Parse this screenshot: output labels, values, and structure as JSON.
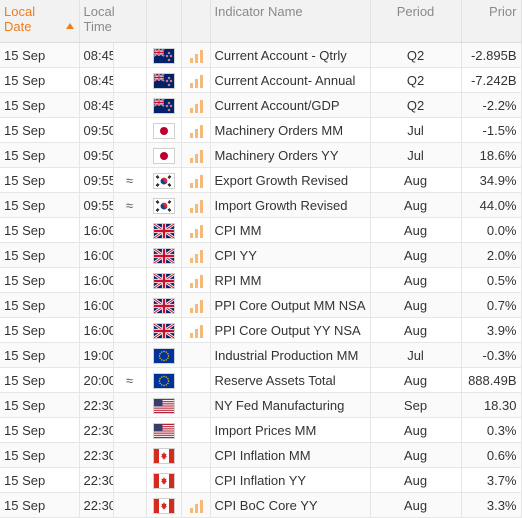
{
  "headers": {
    "local_date": "Local Date",
    "local_time": "Local Time",
    "indicator_name": "Indicator Name",
    "period": "Period",
    "prior": "Prior"
  },
  "rows": [
    {
      "date": "15 Sep",
      "time": "08:45",
      "approx": "",
      "country": "new-zealand",
      "flag_icon": "new-zealand-flag-icon",
      "importance": 3,
      "name": "Current Account - Qtrly",
      "period": "Q2",
      "prior": "-2.895B"
    },
    {
      "date": "15 Sep",
      "time": "08:45",
      "approx": "",
      "country": "new-zealand",
      "flag_icon": "new-zealand-flag-icon",
      "importance": 3,
      "name": "Current Account- Annual",
      "period": "Q2",
      "prior": "-7.242B"
    },
    {
      "date": "15 Sep",
      "time": "08:45",
      "approx": "",
      "country": "new-zealand",
      "flag_icon": "new-zealand-flag-icon",
      "importance": 3,
      "name": "Current Account/GDP",
      "period": "Q2",
      "prior": "-2.2%"
    },
    {
      "date": "15 Sep",
      "time": "09:50",
      "approx": "",
      "country": "japan",
      "flag_icon": "japan-flag-icon",
      "importance": 3,
      "name": "Machinery Orders MM",
      "period": "Jul",
      "prior": "-1.5%"
    },
    {
      "date": "15 Sep",
      "time": "09:50",
      "approx": "",
      "country": "japan",
      "flag_icon": "japan-flag-icon",
      "importance": 3,
      "name": "Machinery Orders YY",
      "period": "Jul",
      "prior": "18.6%"
    },
    {
      "date": "15 Sep",
      "time": "09:55",
      "approx": "≈",
      "country": "south-korea",
      "flag_icon": "south-korea-flag-icon",
      "importance": 3,
      "name": "Export Growth Revised",
      "period": "Aug",
      "prior": "34.9%"
    },
    {
      "date": "15 Sep",
      "time": "09:55",
      "approx": "≈",
      "country": "south-korea",
      "flag_icon": "south-korea-flag-icon",
      "importance": 3,
      "name": "Import Growth Revised",
      "period": "Aug",
      "prior": "44.0%"
    },
    {
      "date": "15 Sep",
      "time": "16:00",
      "approx": "",
      "country": "united-kingdom",
      "flag_icon": "uk-flag-icon",
      "importance": 3,
      "name": "CPI MM",
      "period": "Aug",
      "prior": "0.0%"
    },
    {
      "date": "15 Sep",
      "time": "16:00",
      "approx": "",
      "country": "united-kingdom",
      "flag_icon": "uk-flag-icon",
      "importance": 3,
      "name": "CPI YY",
      "period": "Aug",
      "prior": "2.0%"
    },
    {
      "date": "15 Sep",
      "time": "16:00",
      "approx": "",
      "country": "united-kingdom",
      "flag_icon": "uk-flag-icon",
      "importance": 3,
      "name": "RPI MM",
      "period": "Aug",
      "prior": "0.5%"
    },
    {
      "date": "15 Sep",
      "time": "16:00",
      "approx": "",
      "country": "united-kingdom",
      "flag_icon": "uk-flag-icon",
      "importance": 3,
      "name": "PPI Core Output MM NSA",
      "period": "Aug",
      "prior": "0.7%"
    },
    {
      "date": "15 Sep",
      "time": "16:00",
      "approx": "",
      "country": "united-kingdom",
      "flag_icon": "uk-flag-icon",
      "importance": 3,
      "name": "PPI Core Output YY NSA",
      "period": "Aug",
      "prior": "3.9%"
    },
    {
      "date": "15 Sep",
      "time": "19:00",
      "approx": "",
      "country": "euro-zone",
      "flag_icon": "eu-flag-icon",
      "importance": 0,
      "name": "Industrial Production MM",
      "period": "Jul",
      "prior": "-0.3%"
    },
    {
      "date": "15 Sep",
      "time": "20:00",
      "approx": "≈",
      "country": "euro-zone",
      "flag_icon": "eu-flag-icon",
      "importance": 0,
      "name": "Reserve Assets Total",
      "period": "Aug",
      "prior": "888.49B"
    },
    {
      "date": "15 Sep",
      "time": "22:30",
      "approx": "",
      "country": "united-states",
      "flag_icon": "us-flag-icon",
      "importance": 0,
      "name": "NY Fed Manufacturing",
      "period": "Sep",
      "prior": "18.30"
    },
    {
      "date": "15 Sep",
      "time": "22:30",
      "approx": "",
      "country": "united-states",
      "flag_icon": "us-flag-icon",
      "importance": 0,
      "name": "Import Prices MM",
      "period": "Aug",
      "prior": "0.3%"
    },
    {
      "date": "15 Sep",
      "time": "22:30",
      "approx": "",
      "country": "canada",
      "flag_icon": "canada-flag-icon",
      "importance": 0,
      "name": "CPI Inflation MM",
      "period": "Aug",
      "prior": "0.6%"
    },
    {
      "date": "15 Sep",
      "time": "22:30",
      "approx": "",
      "country": "canada",
      "flag_icon": "canada-flag-icon",
      "importance": 0,
      "name": "CPI Inflation YY",
      "period": "Aug",
      "prior": "3.7%"
    },
    {
      "date": "15 Sep",
      "time": "22:30",
      "approx": "",
      "country": "canada",
      "flag_icon": "canada-flag-icon",
      "importance": 3,
      "name": "CPI BoC Core YY",
      "period": "Aug",
      "prior": "3.3%"
    }
  ],
  "colors": {
    "accent_orange": "#f07d1a",
    "importance_bar": "#f5b97a",
    "header_bg": "#f2f2f2",
    "text": "#333333"
  }
}
